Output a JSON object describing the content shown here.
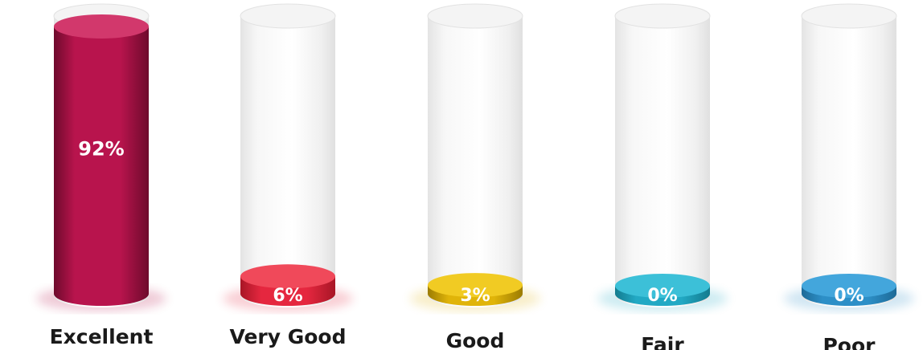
{
  "chart_data": {
    "type": "bar",
    "title": "",
    "xlabel": "",
    "ylabel": "",
    "ylim": [
      0,
      100
    ],
    "grid": false,
    "categories": [
      "Excellent",
      "Very Good",
      "Good",
      "Fair",
      "Poor"
    ],
    "values": [
      92,
      6,
      3,
      0,
      0
    ],
    "value_labels": [
      "92%",
      "6%",
      "3%",
      "0%",
      "0%"
    ],
    "colors": [
      "#b8144d",
      "#e5273f",
      "#e0b409",
      "#22a9c4",
      "#2d8fc7"
    ],
    "dark_colors": [
      "#6e0a2c",
      "#a81626",
      "#9c7c02",
      "#137b8e",
      "#1d6a97"
    ],
    "light_colors": [
      "#d2386c",
      "#f0495a",
      "#f1cb23",
      "#3cc0d8",
      "#43a6dc"
    ]
  }
}
